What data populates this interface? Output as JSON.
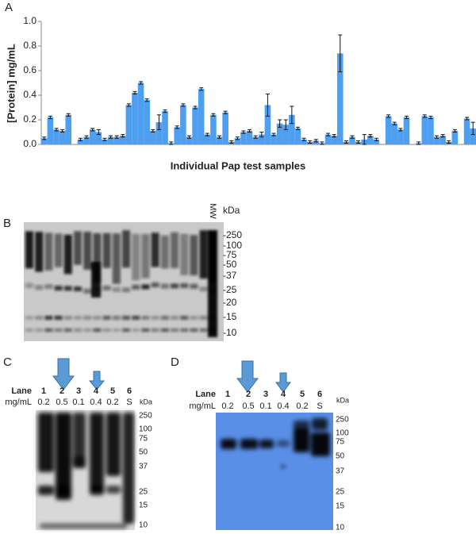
{
  "chart_data": {
    "type": "bar",
    "panel": "A",
    "y_label": "[Protein] mg/mL",
    "x_label": "Individual Pap test samples",
    "color": "#4f9ff0",
    "categories": [
      null,
      null,
      null,
      null,
      null,
      null,
      null,
      null,
      null,
      null,
      null,
      null,
      null,
      null,
      null,
      null,
      null,
      null,
      null,
      null,
      null,
      null,
      null,
      null,
      null,
      null,
      null,
      null,
      null,
      null,
      null,
      null,
      null,
      null,
      null,
      null,
      null,
      null,
      null,
      null,
      null,
      null,
      null,
      null,
      null,
      null,
      null,
      null,
      null,
      null,
      null,
      null,
      null,
      null,
      null,
      null,
      null,
      null,
      null,
      null,
      null,
      null,
      null,
      null,
      null,
      null,
      null,
      null,
      null,
      null,
      null,
      null
    ],
    "values": [
      0.05,
      0.22,
      0.12,
      0.11,
      0.24,
      null,
      0.04,
      0.06,
      0.12,
      0.1,
      0.04,
      0.06,
      0.06,
      0.07,
      0.32,
      0.42,
      0.5,
      0.36,
      0.11,
      0.18,
      0.27,
      0.01,
      0.14,
      0.32,
      0.06,
      0.3,
      0.45,
      0.08,
      0.24,
      0.06,
      0.26,
      0.02,
      0.05,
      0.1,
      0.11,
      0.06,
      0.08,
      0.32,
      0.08,
      0.17,
      0.16,
      0.24,
      0.13,
      0.04,
      0.02,
      0.03,
      0.01,
      0.08,
      0.07,
      0.74,
      0.02,
      0.06,
      0.02,
      0.04,
      0.07,
      0.04,
      null,
      0.23,
      0.17,
      0.12,
      0.22,
      null,
      0.01,
      0.23,
      0.22,
      0.06,
      0.07,
      0.02,
      0.11,
      null,
      0.21,
      0.13
    ],
    "errors": [
      0.01,
      0.01,
      0.01,
      0.01,
      0.01,
      null,
      0.01,
      0.01,
      0.01,
      0.02,
      0.01,
      0.01,
      0.01,
      0.01,
      0.01,
      0.01,
      0.01,
      0.01,
      0.01,
      0.06,
      0.01,
      0.01,
      0.01,
      0.01,
      0.01,
      0.01,
      0.01,
      0.01,
      0.01,
      0.01,
      0.01,
      0.01,
      0.01,
      0.01,
      0.01,
      0.01,
      0.02,
      0.09,
      0.01,
      0.03,
      0.04,
      0.07,
      0.01,
      0.01,
      0.01,
      0.01,
      0.01,
      0.01,
      0.01,
      0.15,
      0.01,
      0.01,
      0.01,
      0.04,
      0.01,
      0.01,
      null,
      0.01,
      0.01,
      0.01,
      0.01,
      null,
      0.01,
      0.01,
      0.01,
      0.01,
      0.01,
      0.01,
      0.01,
      null,
      0.01,
      0.05
    ],
    "ylim": [
      0,
      1
    ],
    "yticks": [
      {
        "value": 0,
        "label": "0.0"
      },
      0.2,
      0.4,
      0.6,
      0.8,
      {
        "value": 1,
        "label": "1.0"
      }
    ]
  },
  "panel_b": {
    "panel": "B",
    "mw_label": "MW",
    "unit": "kDa",
    "markers": [
      "-250",
      "-100",
      "-75",
      "-50",
      "-37",
      "-25",
      "-20",
      "-15",
      "-10"
    ]
  },
  "panel_c": {
    "panel": "C",
    "lane_label": "Lane",
    "conc_label": "mg/mL",
    "unit": "kDa",
    "lanes": [
      "1",
      "2",
      "3",
      "4",
      "5",
      "6"
    ],
    "concentrations": [
      "0.2",
      "0.5",
      "0.1",
      "0.4",
      "0.2",
      "S"
    ],
    "markers": [
      "250",
      "100",
      "75",
      "50",
      "37",
      "25",
      "15",
      "10"
    ]
  },
  "panel_d": {
    "panel": "D",
    "lane_label": "Lane",
    "conc_label": "mg/mL",
    "unit": "kDa",
    "lanes": [
      "1",
      "2",
      "3",
      "4",
      "5",
      "6"
    ],
    "concentrations": [
      "0.2",
      "0.5",
      "0.1",
      "0.4",
      "0.2",
      "S"
    ],
    "markers": [
      "250",
      "100",
      "75",
      "50",
      "37",
      "25",
      "15",
      "10"
    ]
  }
}
